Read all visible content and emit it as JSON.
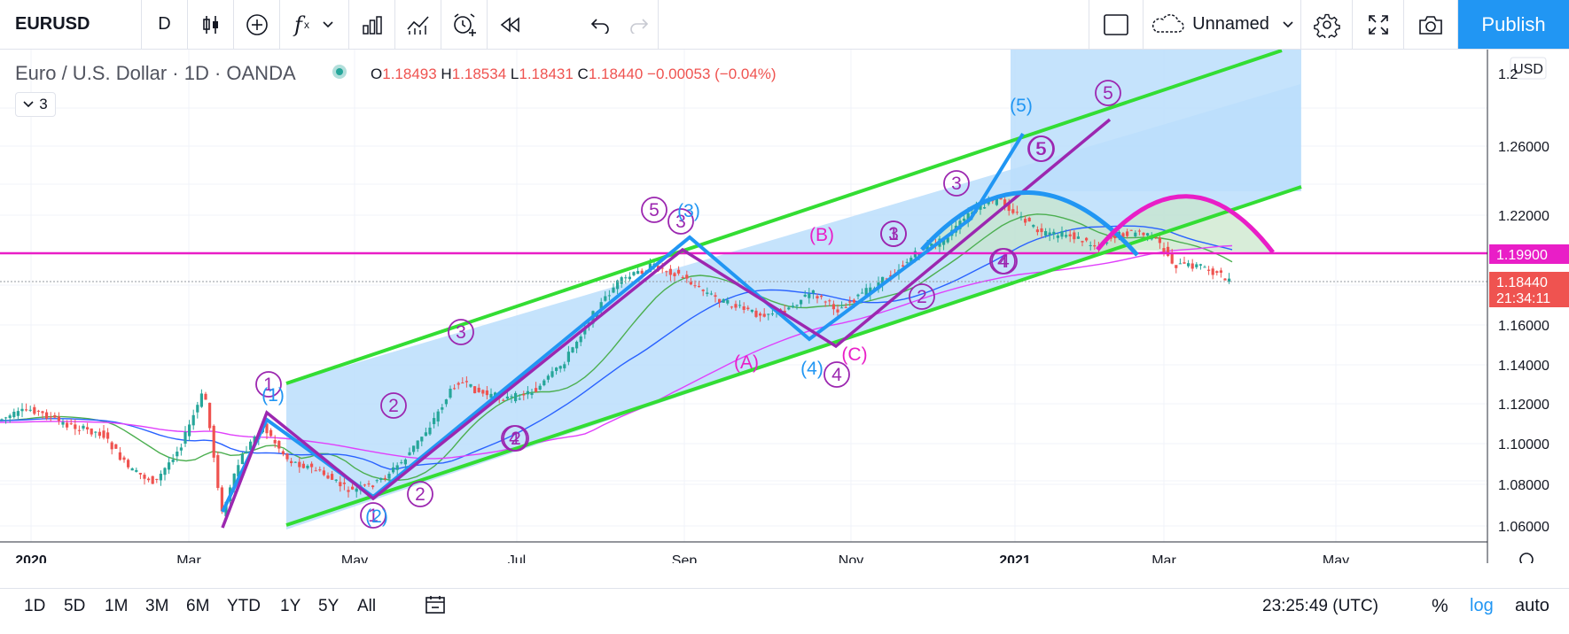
{
  "toolbar": {
    "symbol": "EURUSD",
    "interval": "D",
    "fx_label": "f",
    "layout_name": "Unnamed",
    "publish_label": "Publish"
  },
  "legend": {
    "title": "Euro / U.S. Dollar · 1D · OANDA",
    "o_label": "O",
    "o": "1.18493",
    "h_label": "H",
    "h": "1.18534",
    "l_label": "L",
    "l": "1.18431",
    "c_label": "C",
    "c": "1.18440",
    "change": "−0.00053 (−0.04%)",
    "indicators_count": "3"
  },
  "price_axis": {
    "currency": "USD",
    "ticks": [
      "1.26000",
      "1.22000",
      "1.16000",
      "1.14000",
      "1.12000",
      "1.10000",
      "1.08000",
      "1.06000"
    ],
    "hline_label": "1.19900",
    "last_price": "1.18440",
    "countdown": "21:34:11",
    "top_partial": "1.2"
  },
  "time_axis": {
    "ticks": [
      "2020",
      "Mar",
      "May",
      "Jul",
      "Sep",
      "Nov",
      "2021",
      "Mar",
      "May"
    ]
  },
  "wave_labels": {
    "purple": [
      "1",
      "2",
      "3",
      "4",
      "5",
      "1",
      "2",
      "3",
      "4",
      "5",
      "3",
      "2",
      "4",
      "5",
      "1",
      "2",
      "3",
      "4",
      "5"
    ],
    "blue": [
      "(1)",
      "(2)",
      "(3)",
      "(4)",
      "(5)"
    ],
    "magenta": [
      "(A)",
      "(B)",
      "(C)"
    ]
  },
  "bottom": {
    "ranges": [
      "1D",
      "5D",
      "1M",
      "3M",
      "6M",
      "YTD",
      "1Y",
      "5Y",
      "All"
    ],
    "clock": "23:25:49 (UTC)",
    "percent": "%",
    "log": "log",
    "auto": "auto"
  },
  "colors": {
    "accent": "#2196f3",
    "up": "#26a69a",
    "down": "#ef5350",
    "channel": "#33dd33",
    "wave_purple": "#9c27b0",
    "wave_blue": "#2196f3",
    "hline": "#e91ec7",
    "sma_green": "#4caf50",
    "sma_blue": "#2962ff",
    "sma_magenta": "#e040fb"
  }
}
